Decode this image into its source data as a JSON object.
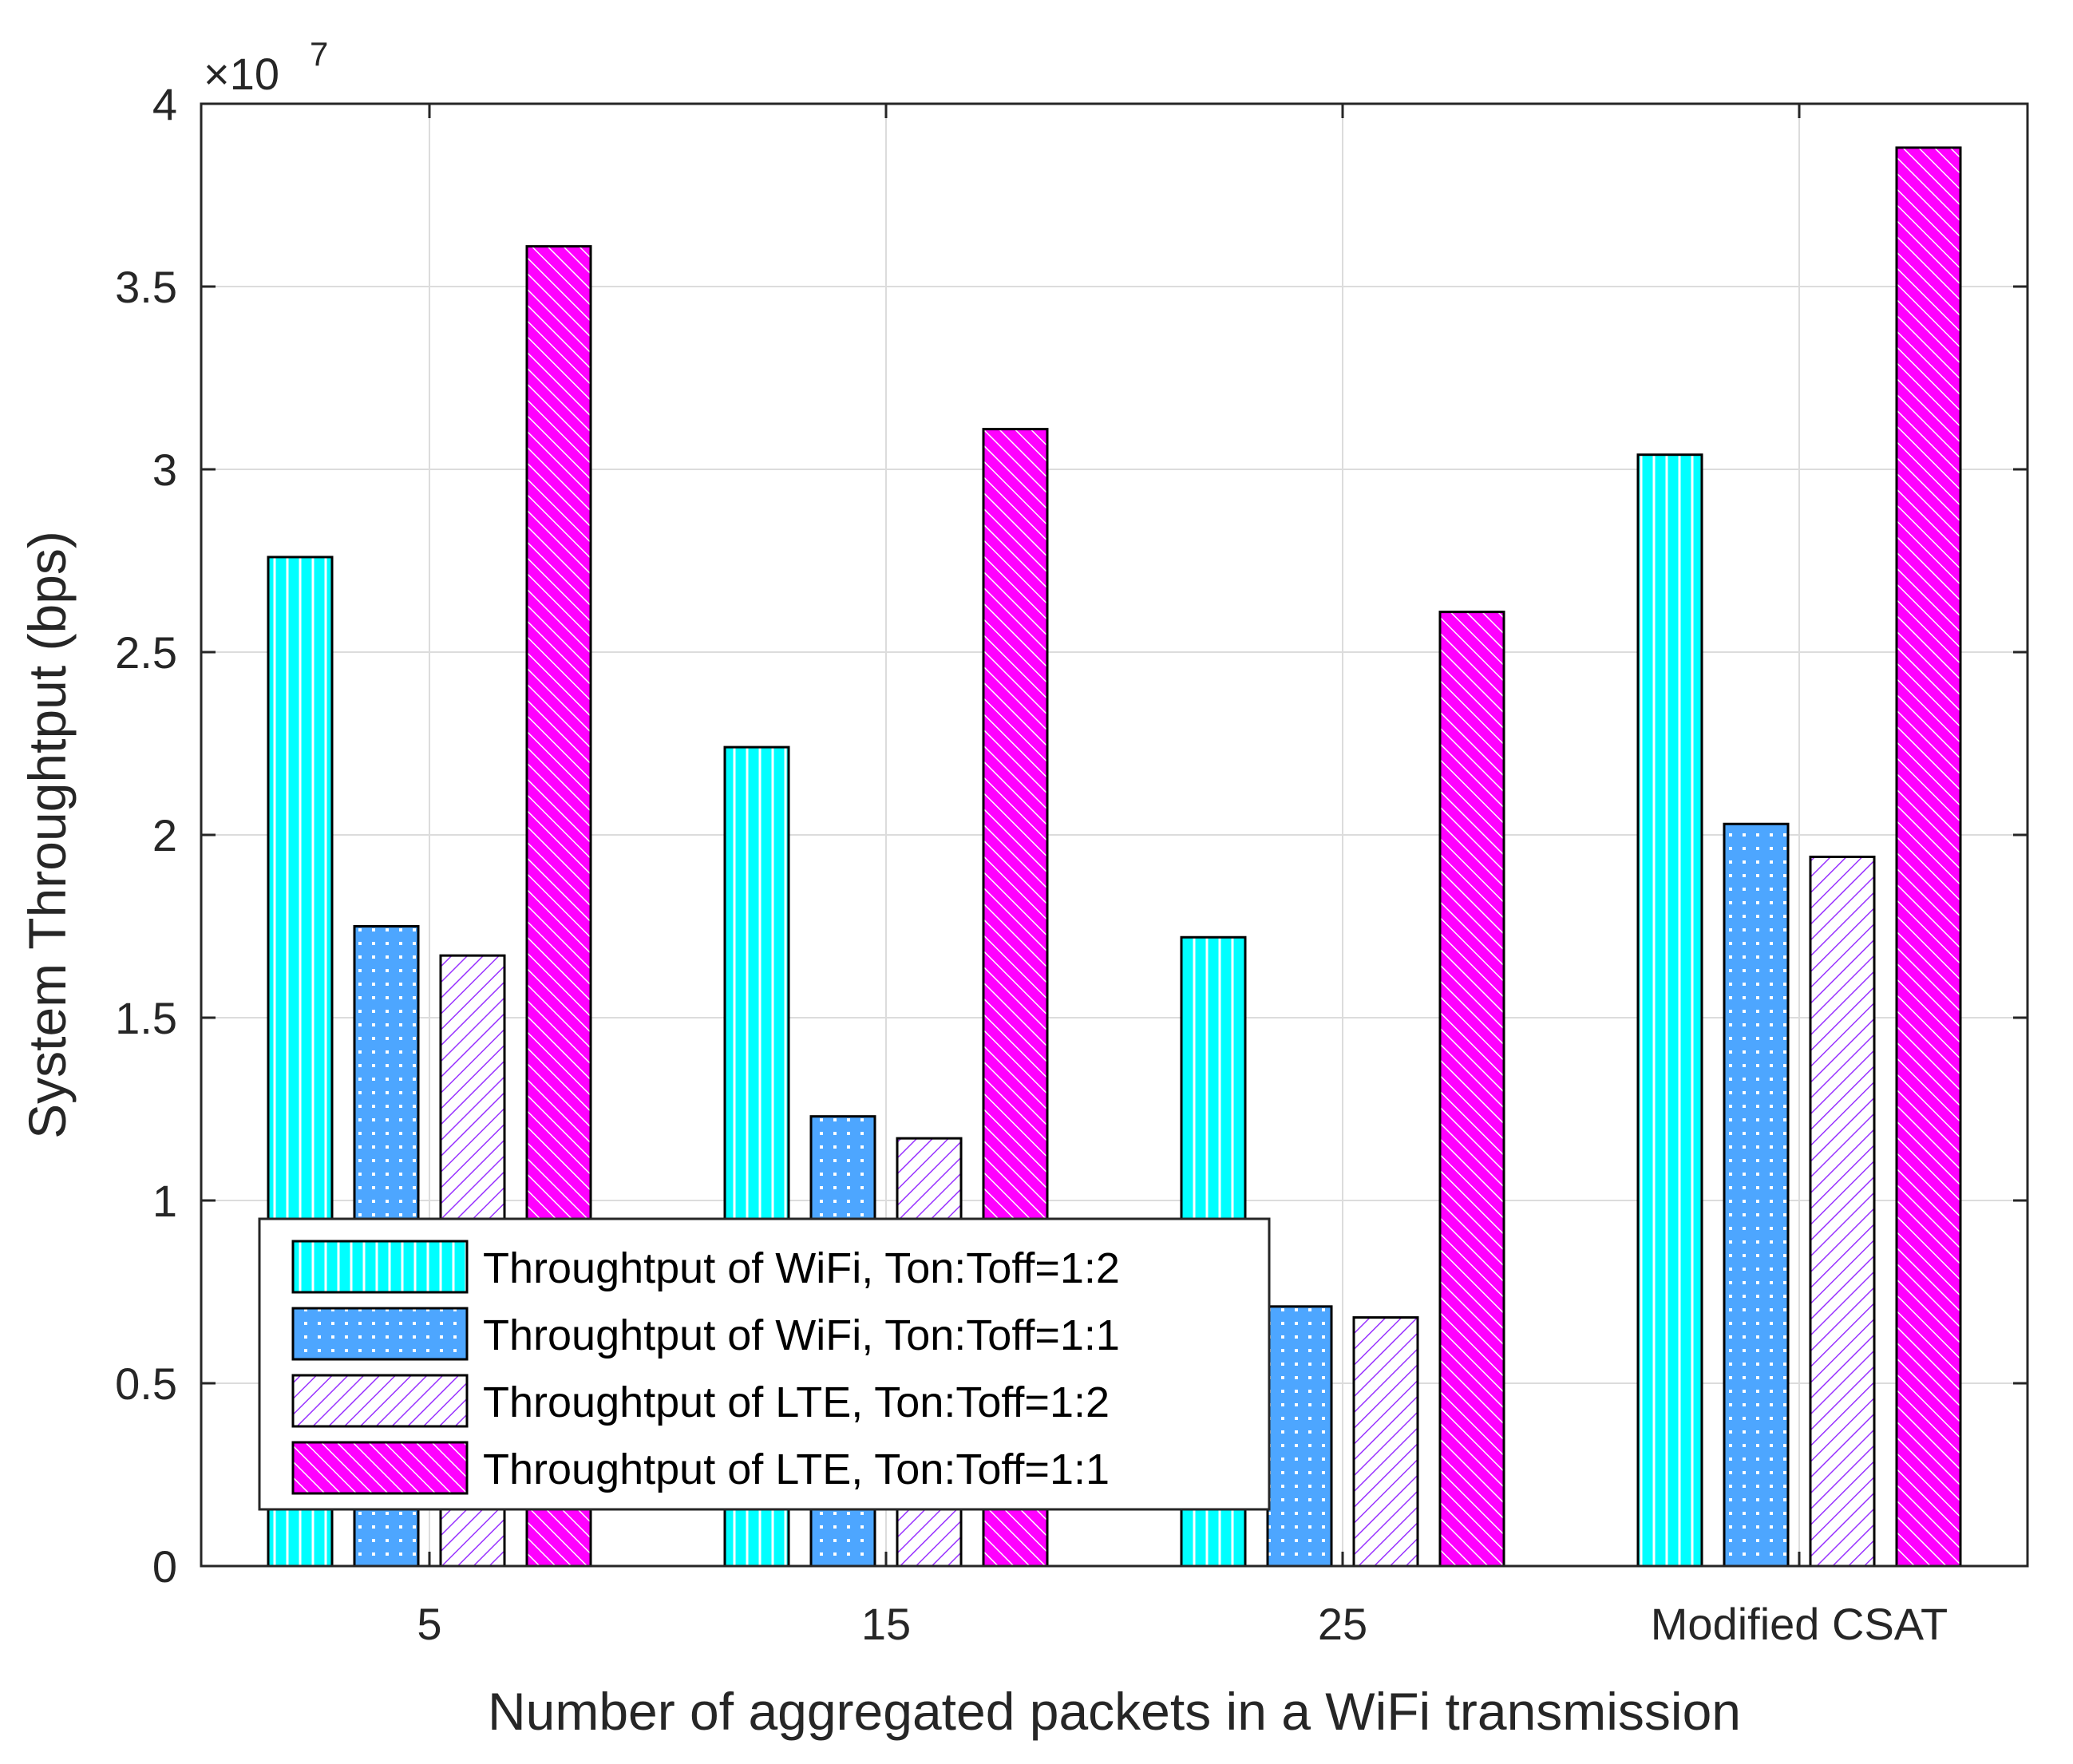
{
  "chart_data": {
    "type": "bar",
    "title": "",
    "xlabel": "Number of aggregated packets in a WiFi transmission",
    "ylabel": "System Throughtput (bps)",
    "ylim": [
      0,
      4
    ],
    "y_scale_label": "×10",
    "y_scale_exponent": "7",
    "yticks": [
      0,
      0.5,
      1,
      1.5,
      2,
      2.5,
      3,
      3.5,
      4
    ],
    "ytick_labels": [
      "0",
      "0.5",
      "1",
      "1.5",
      "2",
      "2.5",
      "3",
      "3.5",
      "4"
    ],
    "categories": [
      "5",
      "15",
      "25",
      "Modified CSAT"
    ],
    "grid": true,
    "legend_position": "lower-left",
    "series": [
      {
        "name": "Throughtput of WiFi, Ton:Toff=1:2",
        "values": [
          2.76,
          2.24,
          1.72,
          3.04
        ],
        "color": "#00ffff",
        "pattern": "vertical"
      },
      {
        "name": "Throughtput of WiFi, Ton:Toff=1:1",
        "values": [
          1.75,
          1.23,
          0.71,
          2.03
        ],
        "color": "#4da6ff",
        "pattern": "dots"
      },
      {
        "name": "Throughtput of LTE, Ton:Toff=1:2",
        "values": [
          1.67,
          1.17,
          0.68,
          1.94
        ],
        "color": "#ffffff",
        "pattern": "diag-purple"
      },
      {
        "name": "Throughtput of LTE, Ton:Toff=1:1",
        "values": [
          3.61,
          3.11,
          2.61,
          3.88
        ],
        "color": "#ff00ff",
        "pattern": "diag-white"
      }
    ]
  }
}
